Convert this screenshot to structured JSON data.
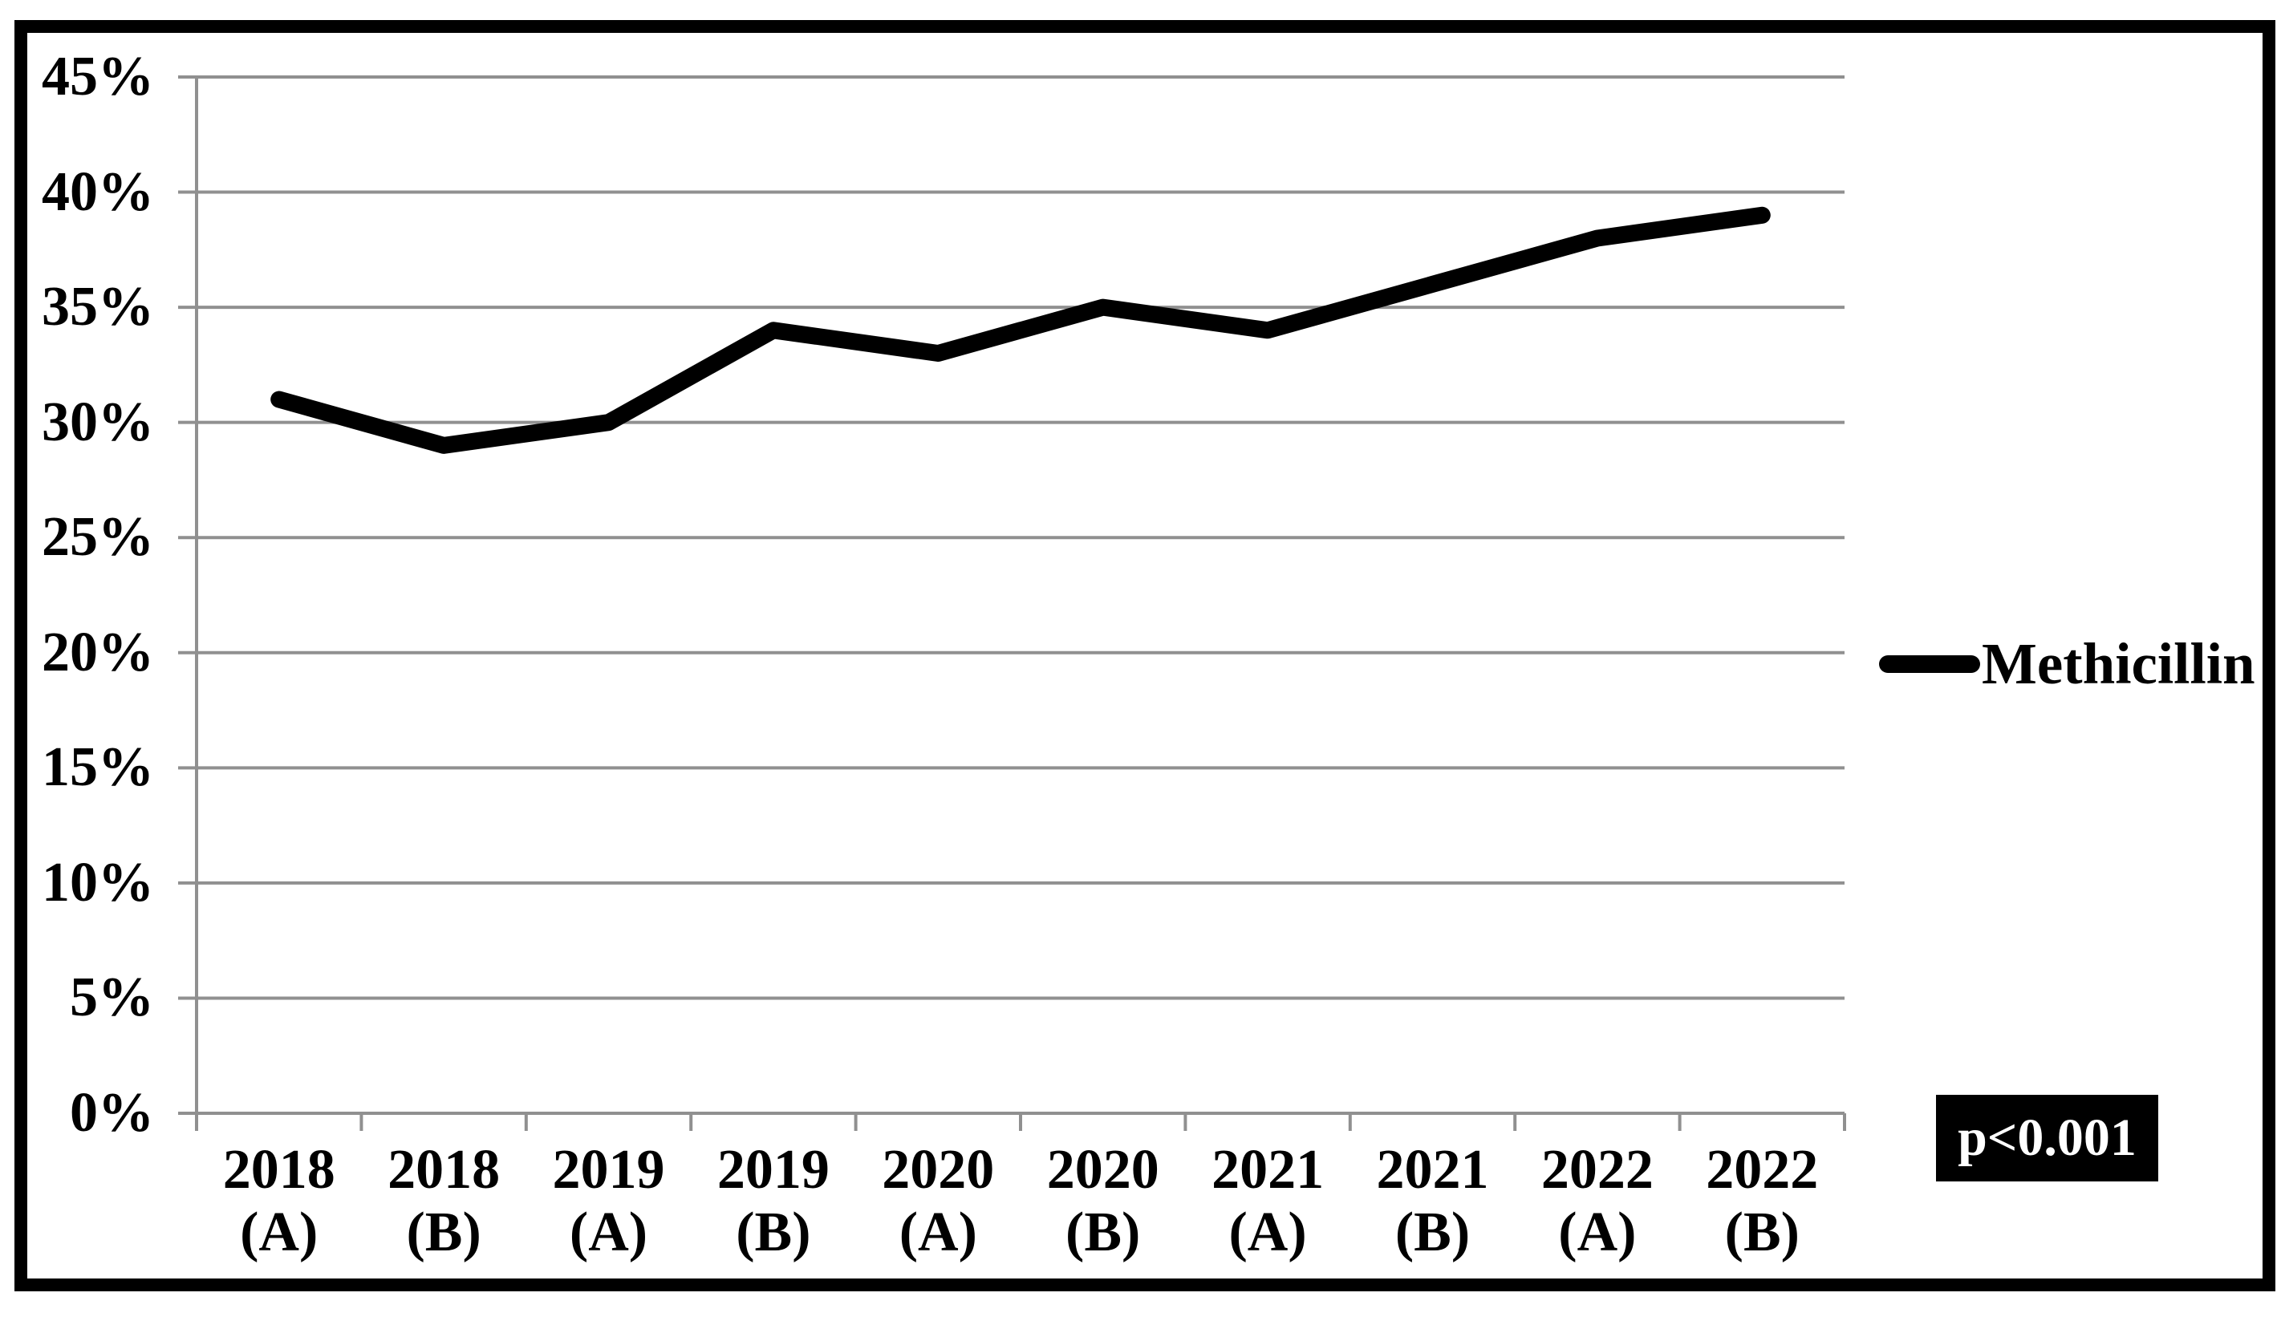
{
  "chart_data": {
    "type": "line",
    "title": "",
    "xlabel": "",
    "ylabel": "",
    "categories": [
      "2018 (A)",
      "2018 (B)",
      "2019 (A)",
      "2019 (B)",
      "2020 (A)",
      "2020 (B)",
      "2021 (A)",
      "2021 (B)",
      "2022 (A)",
      "2022 (B)"
    ],
    "series": [
      {
        "name": "Methicillin",
        "values": [
          31,
          29,
          30,
          34,
          33,
          35,
          34,
          36,
          38,
          39
        ]
      }
    ],
    "y_axis": {
      "min": 0,
      "max": 45,
      "step": 5,
      "tick_labels": [
        "0%",
        "5%",
        "10%",
        "15%",
        "20%",
        "25%",
        "30%",
        "35%",
        "40%",
        "45%"
      ]
    },
    "grid": "horizontal",
    "legend_position": "right-middle",
    "annotations": [
      {
        "text": "p<0.001",
        "position": "bottom-right",
        "style": "white-on-black"
      }
    ]
  },
  "colors": {
    "line": "#000000",
    "gridline": "#909090",
    "axis": "#909090",
    "text": "#000000",
    "frame": "#000000",
    "background": "#ffffff",
    "annotation_bg": "#000000",
    "annotation_text": "#ffffff"
  }
}
